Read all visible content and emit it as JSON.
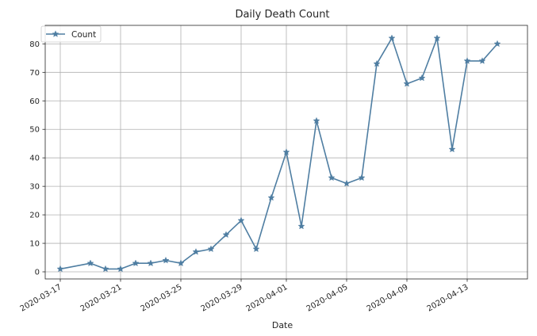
{
  "chart_data": {
    "type": "line",
    "title": "Daily Death Count",
    "xlabel": "Date",
    "ylabel": "",
    "ylim": [
      -2.5,
      86.5
    ],
    "xlim": [
      "2020-03-16",
      "2020-04-17"
    ],
    "y_ticks": [
      0,
      10,
      20,
      30,
      40,
      50,
      60,
      70,
      80
    ],
    "x_ticks": [
      "2020-03-17",
      "2020-03-21",
      "2020-03-25",
      "2020-03-29",
      "2020-04-01",
      "2020-04-05",
      "2020-04-09",
      "2020-04-13"
    ],
    "grid": true,
    "legend_position": "upper-left",
    "series": [
      {
        "name": "Count",
        "color": "#4f7ea2",
        "marker": "star",
        "x": [
          "2020-03-17",
          "2020-03-19",
          "2020-03-20",
          "2020-03-21",
          "2020-03-22",
          "2020-03-23",
          "2020-03-24",
          "2020-03-25",
          "2020-03-26",
          "2020-03-27",
          "2020-03-28",
          "2020-03-29",
          "2020-03-30",
          "2020-03-31",
          "2020-04-01",
          "2020-04-02",
          "2020-04-03",
          "2020-04-04",
          "2020-04-05",
          "2020-04-06",
          "2020-04-07",
          "2020-04-08",
          "2020-04-09",
          "2020-04-10",
          "2020-04-11",
          "2020-04-12",
          "2020-04-13",
          "2020-04-14",
          "2020-04-15"
        ],
        "values": [
          1,
          3,
          1,
          1,
          3,
          3,
          4,
          3,
          7,
          8,
          13,
          18,
          8,
          26,
          42,
          16,
          53,
          33,
          31,
          33,
          73,
          82,
          66,
          68,
          82,
          43,
          74,
          74,
          80
        ]
      }
    ]
  }
}
